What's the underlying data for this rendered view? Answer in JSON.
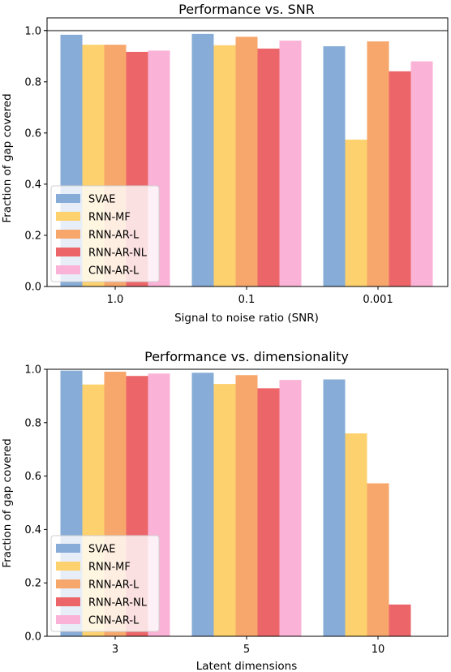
{
  "chart_data": [
    {
      "type": "bar",
      "title": "Performance vs. SNR",
      "xlabel": "Signal to noise ratio (SNR)",
      "ylabel": "Fraction of gap covered",
      "ylim": [
        0,
        1.05
      ],
      "yticks": [
        "0.0",
        "0.2",
        "0.4",
        "0.6",
        "0.8",
        "1.0"
      ],
      "categories": [
        "1.0",
        "0.1",
        "0.001"
      ],
      "reference_line": 1.0,
      "legend_position": "lower-left",
      "grid": false,
      "series": [
        {
          "name": "SVAE",
          "color": "#87acd7",
          "values": [
            0.984,
            0.987,
            0.939
          ]
        },
        {
          "name": "RNN-MF",
          "color": "#fdd16e",
          "values": [
            0.945,
            0.943,
            0.574
          ]
        },
        {
          "name": "RNN-AR-L",
          "color": "#f7a76b",
          "values": [
            0.945,
            0.976,
            0.958
          ]
        },
        {
          "name": "RNN-AR-NL",
          "color": "#ec6669",
          "values": [
            0.917,
            0.93,
            0.841
          ]
        },
        {
          "name": "CNN-AR-L",
          "color": "#fbb2d7",
          "values": [
            0.922,
            0.961,
            0.88
          ]
        }
      ]
    },
    {
      "type": "bar",
      "title": "Performance vs. dimensionality",
      "xlabel": "Latent dimensions",
      "ylabel": "Fraction of gap covered",
      "ylim": [
        0,
        1.0
      ],
      "yticks": [
        "0.0",
        "0.2",
        "0.4",
        "0.6",
        "0.8",
        "1.0"
      ],
      "categories": [
        "3",
        "5",
        "10"
      ],
      "legend_position": "lower-left",
      "grid": false,
      "series": [
        {
          "name": "SVAE",
          "color": "#87acd7",
          "values": [
            0.995,
            0.987,
            0.962
          ]
        },
        {
          "name": "RNN-MF",
          "color": "#fdd16e",
          "values": [
            0.943,
            0.945,
            0.76
          ]
        },
        {
          "name": "RNN-AR-L",
          "color": "#f7a76b",
          "values": [
            0.991,
            0.978,
            0.573
          ]
        },
        {
          "name": "RNN-AR-NL",
          "color": "#ec6669",
          "values": [
            0.975,
            0.929,
            0.119
          ]
        },
        {
          "name": "CNN-AR-L",
          "color": "#fbb2d7",
          "values": [
            0.984,
            0.96,
            null
          ]
        }
      ]
    }
  ]
}
